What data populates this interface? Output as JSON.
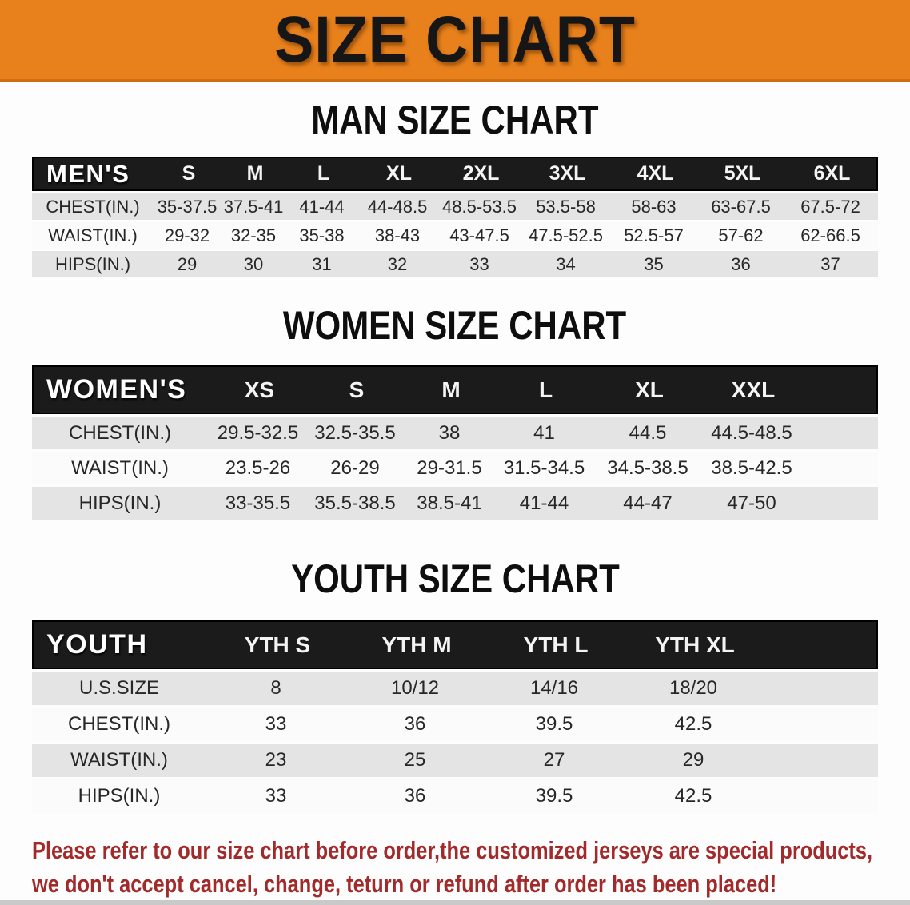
{
  "banner": {
    "title": "SIZE CHART"
  },
  "men": {
    "heading": "MAN SIZE CHART",
    "header_label": "MEN'S",
    "columns": [
      "S",
      "M",
      "L",
      "XL",
      "2XL",
      "3XL",
      "4XL",
      "5XL",
      "6XL"
    ],
    "rows": [
      {
        "label": "CHEST(IN.)",
        "values": [
          "35-37.5",
          "37.5-41",
          "41-44",
          "44-48.5",
          "48.5-53.5",
          "53.5-58",
          "58-63",
          "63-67.5",
          "67.5-72"
        ]
      },
      {
        "label": "WAIST(IN.)",
        "values": [
          "29-32",
          "32-35",
          "35-38",
          "38-43",
          "43-47.5",
          "47.5-52.5",
          "52.5-57",
          "57-62",
          "62-66.5"
        ]
      },
      {
        "label": "HIPS(IN.)",
        "values": [
          "29",
          "30",
          "31",
          "32",
          "33",
          "34",
          "35",
          "36",
          "37"
        ]
      }
    ]
  },
  "women": {
    "heading": "WOMEN SIZE CHART",
    "header_label": "WOMEN'S",
    "columns": [
      "XS",
      "S",
      "M",
      "L",
      "XL",
      "XXL"
    ],
    "rows": [
      {
        "label": "CHEST(IN.)",
        "values": [
          "29.5-32.5",
          "32.5-35.5",
          "38",
          "41",
          "44.5",
          "44.5-48.5"
        ]
      },
      {
        "label": "WAIST(IN.)",
        "values": [
          "23.5-26",
          "26-29",
          "29-31.5",
          "31.5-34.5",
          "34.5-38.5",
          "38.5-42.5"
        ]
      },
      {
        "label": "HIPS(IN.)",
        "values": [
          "33-35.5",
          "35.5-38.5",
          "38.5-41",
          "41-44",
          "44-47",
          "47-50"
        ]
      }
    ]
  },
  "youth": {
    "heading": "YOUTH SIZE CHART",
    "header_label": "YOUTH",
    "columns": [
      "YTH S",
      "YTH M",
      "YTH L",
      "YTH XL"
    ],
    "rows": [
      {
        "label": "U.S.SIZE",
        "values": [
          "8",
          "10/12",
          "14/16",
          "18/20"
        ]
      },
      {
        "label": "CHEST(IN.)",
        "values": [
          "33",
          "36",
          "39.5",
          "42.5"
        ]
      },
      {
        "label": "WAIST(IN.)",
        "values": [
          "23",
          "25",
          "27",
          "29"
        ]
      },
      {
        "label": "HIPS(IN.)",
        "values": [
          "33",
          "36",
          "39.5",
          "42.5"
        ]
      }
    ]
  },
  "disclaimer": {
    "line1": "Please refer to our size chart before order,the customized jerseys are special products,",
    "line2": "we don't accept cancel, change, teturn or refund after order has been placed!"
  },
  "colors": {
    "banner_bg": "#E8811C",
    "table_header_bg": "#1B1B1B",
    "row_shaded": "#E4E4E4",
    "row_plain": "#FBFBFB",
    "disclaimer_text": "#A32A2A",
    "title_text": "#161616"
  }
}
